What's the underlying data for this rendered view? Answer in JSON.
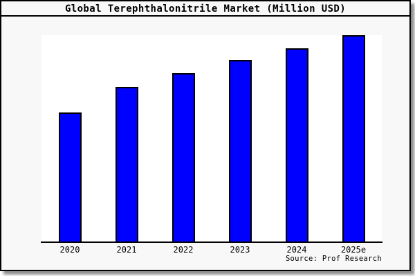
{
  "window": {
    "title": "Global Terephthalonitrile Market (Million USD)",
    "source_note": "Source: Prof Research"
  },
  "colors": {
    "bar_fill": "#0000ff",
    "bar_border": "#000000",
    "window_bg": "#f8f8f8",
    "plot_bg": "#ffffff",
    "axis_line": "#000000",
    "text": "#000000"
  },
  "chart_data": {
    "type": "bar",
    "title": "Global Terephthalonitrile Market (Million USD)",
    "categories": [
      "2020",
      "2021",
      "2022",
      "2023",
      "2024",
      "2025e"
    ],
    "values": [
      62.5,
      75,
      81.5,
      88,
      93.5,
      100
    ],
    "value_note": "relative bar heights as % of 2025e bar; chart shows no y-axis scale or gridlines",
    "xlabel": "",
    "ylabel": "",
    "ylim": [
      0,
      100
    ],
    "grid": false,
    "legend": false,
    "y_axis_shown": false,
    "source": "Source: Prof Research"
  }
}
